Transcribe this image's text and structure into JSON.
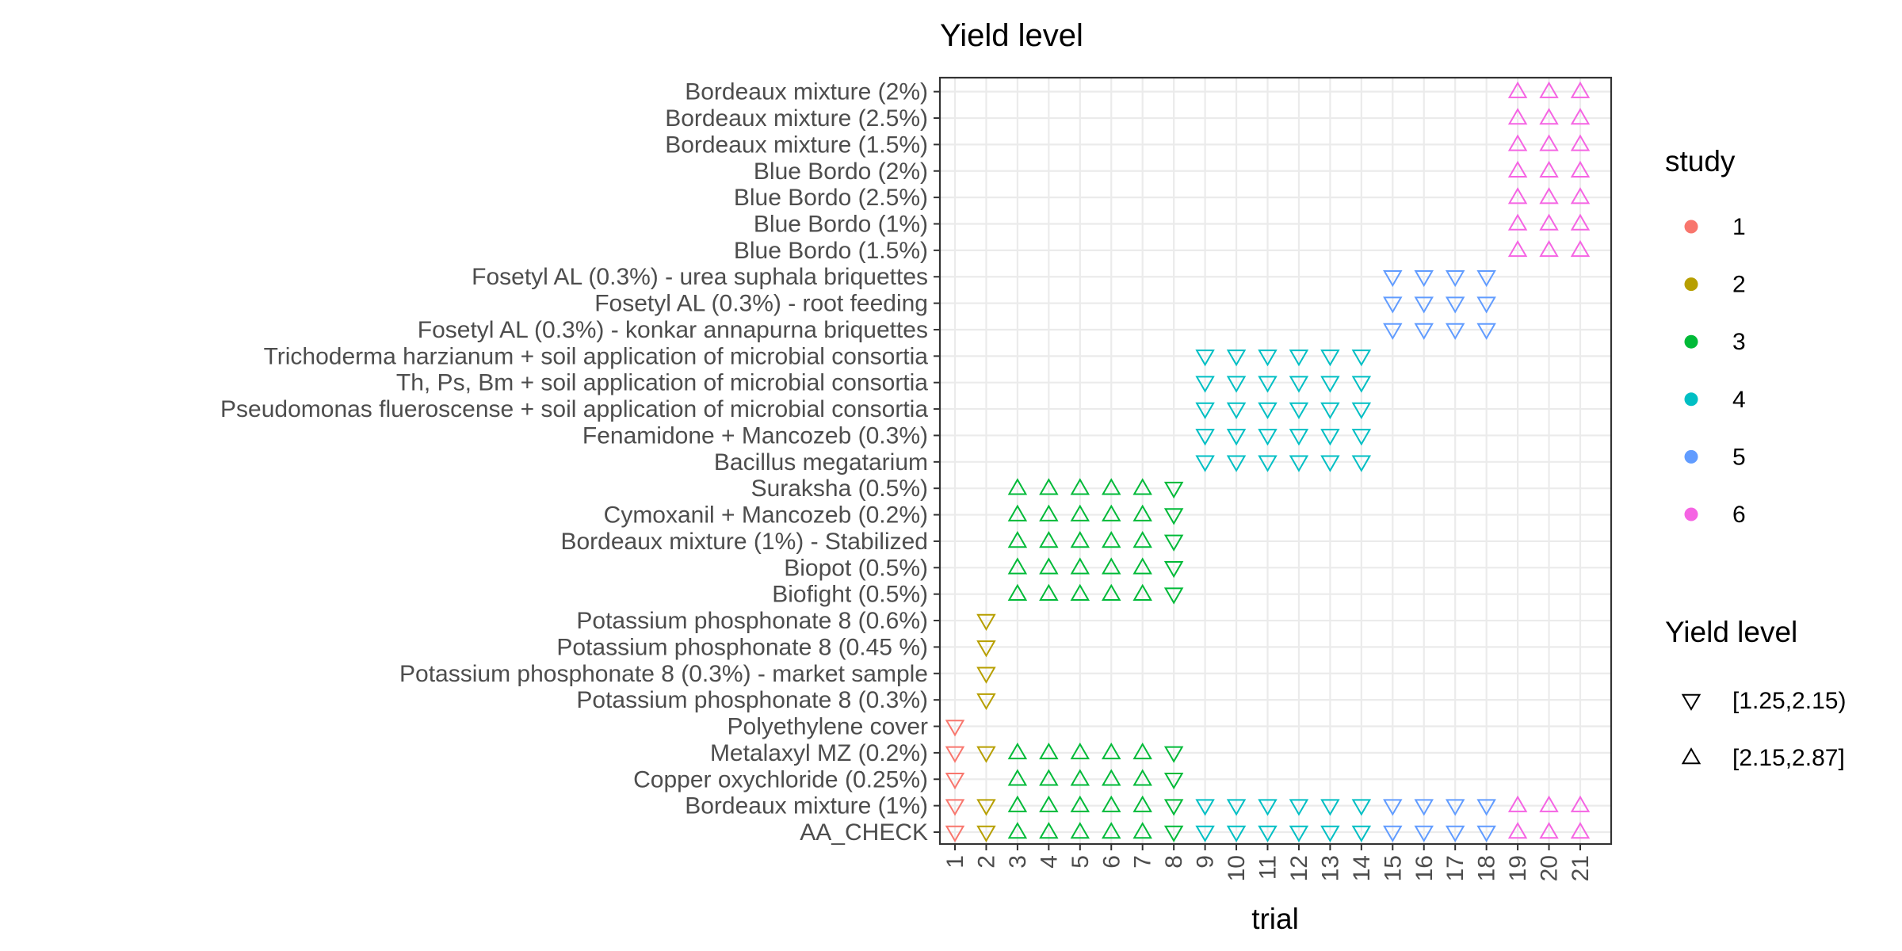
{
  "chart_data": {
    "type": "scatter",
    "title": "Yield level",
    "xlabel": "trial",
    "ylabel": "",
    "x_categories": [
      "1",
      "2",
      "3",
      "4",
      "5",
      "6",
      "7",
      "8",
      "9",
      "10",
      "11",
      "12",
      "13",
      "14",
      "15",
      "16",
      "17",
      "18",
      "19",
      "20",
      "21"
    ],
    "y_categories": [
      "AA_CHECK",
      "Bordeaux mixture (1%)",
      "Copper oxychloride (0.25%)",
      "Metalaxyl MZ (0.2%)",
      "Polyethylene cover",
      "Potassium phosphonate 8 (0.3%)",
      "Potassium phosphonate 8 (0.3%) - market sample",
      "Potassium phosphonate 8 (0.45 %)",
      "Potassium phosphonate 8 (0.6%)",
      "Biofight (0.5%)",
      "Biopot (0.5%)",
      "Bordeaux mixture (1%) - Stabilized",
      "Cymoxanil + Mancozeb (0.2%)",
      "Suraksha (0.5%)",
      "Bacillus megatarium",
      "Fenamidone + Mancozeb (0.3%)",
      "Pseudomonas flueroscense + soil application of microbial consortia",
      "Th, Ps, Bm + soil application of microbial consortia",
      "Trichoderma harzianum + soil application of microbial consortia",
      "Fosetyl AL (0.3%) - konkar annapurna briquettes",
      "Fosetyl AL (0.3%) - root feeding",
      "Fosetyl AL (0.3%) - urea suphala briquettes",
      "Blue Bordo (1.5%)",
      "Blue Bordo (1%)",
      "Blue Bordo (2.5%)",
      "Blue Bordo (2%)",
      "Bordeaux mixture (1.5%)",
      "Bordeaux mixture (2.5%)",
      "Bordeaux mixture (2%)"
    ],
    "grid": true,
    "legend_placement": "right",
    "study_legend": {
      "title": "study",
      "entries": [
        {
          "label": "1",
          "color": "#F8766D"
        },
        {
          "label": "2",
          "color": "#B79F00"
        },
        {
          "label": "3",
          "color": "#00BA38"
        },
        {
          "label": "4",
          "color": "#00BFC4"
        },
        {
          "label": "5",
          "color": "#619CFF"
        },
        {
          "label": "6",
          "color": "#F564E3"
        }
      ]
    },
    "yield_legend": {
      "title": "Yield level",
      "entries": [
        {
          "label": "[1.25,2.15)",
          "shape": "triangle-down"
        },
        {
          "label": "[2.15,2.87]",
          "shape": "triangle-up"
        }
      ]
    },
    "series": [
      {
        "study": "1",
        "trials": [
          "1"
        ],
        "points": [
          {
            "treatment": "AA_CHECK",
            "trial": "1",
            "yield_level": "[1.25,2.15)"
          },
          {
            "treatment": "Bordeaux mixture (1%)",
            "trial": "1",
            "yield_level": "[1.25,2.15)"
          },
          {
            "treatment": "Copper oxychloride (0.25%)",
            "trial": "1",
            "yield_level": "[1.25,2.15)"
          },
          {
            "treatment": "Metalaxyl MZ (0.2%)",
            "trial": "1",
            "yield_level": "[1.25,2.15)"
          },
          {
            "treatment": "Polyethylene cover",
            "trial": "1",
            "yield_level": "[1.25,2.15)"
          }
        ]
      },
      {
        "study": "2",
        "trials": [
          "2"
        ],
        "points": [
          {
            "treatment": "AA_CHECK",
            "trial": "2",
            "yield_level": "[1.25,2.15)"
          },
          {
            "treatment": "Bordeaux mixture (1%)",
            "trial": "2",
            "yield_level": "[1.25,2.15)"
          },
          {
            "treatment": "Metalaxyl MZ (0.2%)",
            "trial": "2",
            "yield_level": "[1.25,2.15)"
          },
          {
            "treatment": "Potassium phosphonate 8 (0.3%)",
            "trial": "2",
            "yield_level": "[1.25,2.15)"
          },
          {
            "treatment": "Potassium phosphonate 8 (0.3%) - market sample",
            "trial": "2",
            "yield_level": "[1.25,2.15)"
          },
          {
            "treatment": "Potassium phosphonate 8 (0.45 %)",
            "trial": "2",
            "yield_level": "[1.25,2.15)"
          },
          {
            "treatment": "Potassium phosphonate 8 (0.6%)",
            "trial": "2",
            "yield_level": "[1.25,2.15)"
          }
        ]
      },
      {
        "study": "3",
        "trials": [
          "3",
          "4",
          "5",
          "6",
          "7",
          "8"
        ],
        "treatments": [
          "AA_CHECK",
          "Bordeaux mixture (1%)",
          "Copper oxychloride (0.25%)",
          "Metalaxyl MZ (0.2%)",
          "Biofight (0.5%)",
          "Biopot (0.5%)",
          "Bordeaux mixture (1%) - Stabilized",
          "Cymoxanil + Mancozeb (0.2%)",
          "Suraksha (0.5%)"
        ],
        "yield_by_trial": {
          "3": "[2.15,2.87]",
          "4": "[2.15,2.87]",
          "5": "[2.15,2.87]",
          "6": "[2.15,2.87]",
          "7": "[2.15,2.87]",
          "8": "[1.25,2.15)"
        }
      },
      {
        "study": "4",
        "trials": [
          "9",
          "10",
          "11",
          "12",
          "13",
          "14"
        ],
        "treatments": [
          "AA_CHECK",
          "Bordeaux mixture (1%)",
          "Bacillus megatarium",
          "Fenamidone + Mancozeb (0.3%)",
          "Pseudomonas flueroscense + soil application of microbial consortia",
          "Th, Ps, Bm + soil application of microbial consortia",
          "Trichoderma harzianum + soil application of microbial consortia"
        ],
        "yield_by_trial": {
          "9": "[1.25,2.15)",
          "10": "[1.25,2.15)",
          "11": "[1.25,2.15)",
          "12": "[1.25,2.15)",
          "13": "[1.25,2.15)",
          "14": "[1.25,2.15)"
        }
      },
      {
        "study": "5",
        "trials": [
          "15",
          "16",
          "17",
          "18"
        ],
        "treatments": [
          "AA_CHECK",
          "Bordeaux mixture (1%)",
          "Fosetyl AL (0.3%) - konkar annapurna briquettes",
          "Fosetyl AL (0.3%) - root feeding",
          "Fosetyl AL (0.3%) - urea suphala briquettes"
        ],
        "yield_by_trial": {
          "15": "[1.25,2.15)",
          "16": "[1.25,2.15)",
          "17": "[1.25,2.15)",
          "18": "[1.25,2.15)"
        }
      },
      {
        "study": "6",
        "trials": [
          "19",
          "20",
          "21"
        ],
        "treatments": [
          "AA_CHECK",
          "Bordeaux mixture (1%)",
          "Blue Bordo (1.5%)",
          "Blue Bordo (1%)",
          "Blue Bordo (2.5%)",
          "Blue Bordo (2%)",
          "Bordeaux mixture (1.5%)",
          "Bordeaux mixture (2.5%)",
          "Bordeaux mixture (2%)"
        ],
        "yield_by_trial": {
          "19": "[2.15,2.87]",
          "20": "[2.15,2.87]",
          "21": "[2.15,2.87]"
        }
      }
    ]
  }
}
